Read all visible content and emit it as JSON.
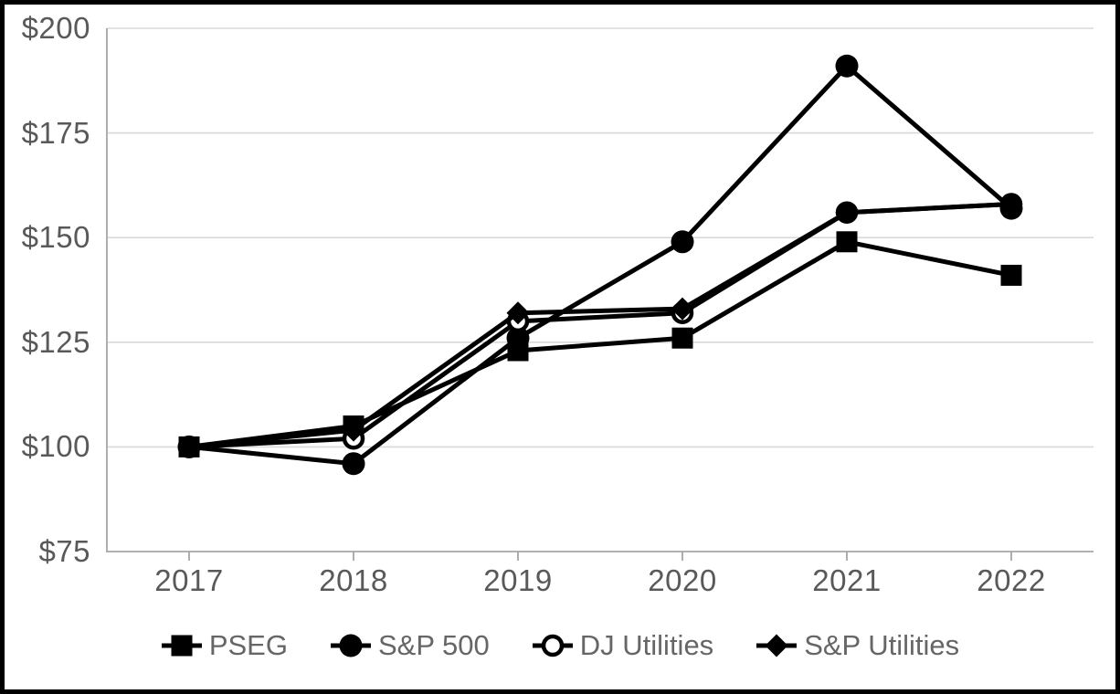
{
  "chart_data": {
    "type": "line",
    "title": "",
    "x_categories": [
      "2017",
      "2018",
      "2019",
      "2020",
      "2021",
      "2022"
    ],
    "y_ticks": [
      75,
      100,
      125,
      150,
      175,
      200
    ],
    "y_tick_labels": [
      "$75",
      "$100",
      "$125",
      "$150",
      "$175",
      "$200"
    ],
    "ylim": [
      75,
      200
    ],
    "grid": "horizontal-only",
    "legend_position": "bottom-center",
    "series": [
      {
        "name": "PSEG",
        "marker": "filled-square",
        "values": [
          100,
          105,
          123,
          126,
          149,
          141
        ]
      },
      {
        "name": "S&P 500",
        "marker": "filled-circle",
        "values": [
          100,
          96,
          126,
          149,
          191,
          157
        ]
      },
      {
        "name": "DJ Utilities",
        "marker": "open-circle",
        "values": [
          100,
          102,
          130,
          132,
          156,
          158
        ]
      },
      {
        "name": "S&P Utilities",
        "marker": "filled-diamond",
        "values": [
          100,
          104,
          132,
          133,
          156,
          158
        ]
      }
    ],
    "colors": {
      "series_line": "#000000",
      "axis_text": "#595959",
      "axis_line": "#a6a6a6",
      "gridline": "#d9d9d9",
      "background": "#ffffff",
      "frame_border": "#000000"
    }
  }
}
